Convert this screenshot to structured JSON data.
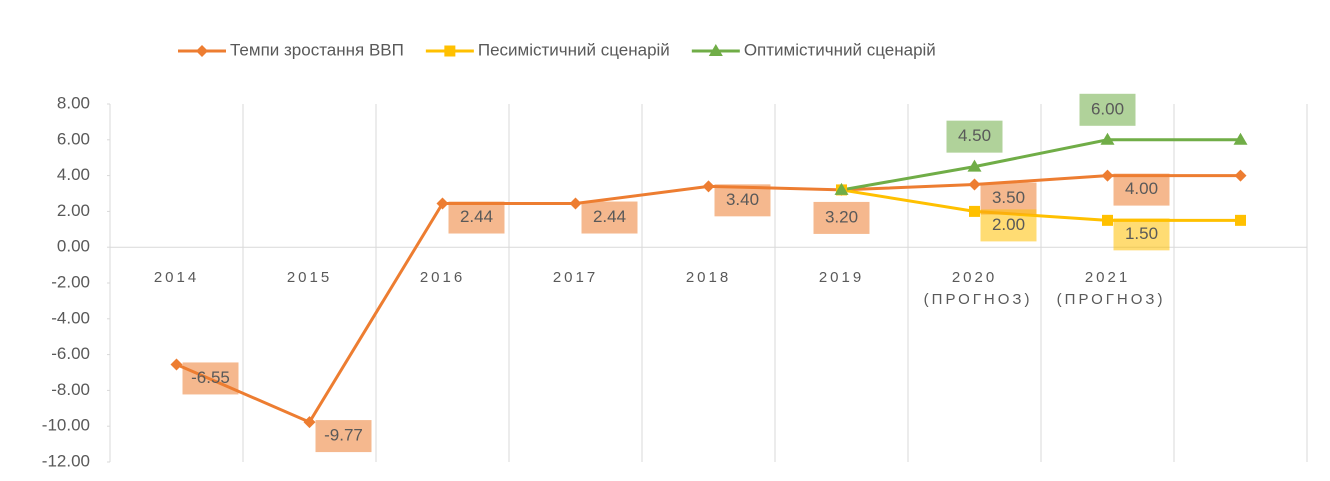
{
  "chart_data": {
    "type": "line",
    "categories": [
      "2014",
      "2015",
      "2016",
      "2017",
      "2018",
      "2019",
      "2020 (ПРОГНОЗ)",
      "2021 (ПРОГНОЗ)",
      null
    ],
    "series": [
      {
        "name": "Темпи зростання ВВП",
        "color": "#ed7d31",
        "marker": "diamond",
        "values": [
          -6.55,
          -9.77,
          2.44,
          2.44,
          3.4,
          3.2,
          3.5,
          4.0,
          4.0
        ],
        "value_labels": [
          "-6.55",
          "-9.77",
          "2.44",
          "2.44",
          "3.40",
          "3.20",
          "3.50",
          "4.00",
          null
        ]
      },
      {
        "name": "Песимістичний сценарій",
        "color": "#ffc000",
        "marker": "square",
        "values": [
          null,
          null,
          null,
          null,
          null,
          3.2,
          2.0,
          1.5,
          1.5
        ],
        "value_labels": [
          null,
          null,
          null,
          null,
          null,
          null,
          "2.00",
          "1.50",
          null
        ]
      },
      {
        "name": "Оптимістичний сценарій",
        "color": "#70ad47",
        "marker": "triangle",
        "values": [
          null,
          null,
          null,
          null,
          null,
          3.2,
          4.5,
          6.0,
          6.0
        ],
        "value_labels": [
          null,
          null,
          null,
          null,
          null,
          null,
          "4.50",
          "6.00",
          null
        ]
      }
    ],
    "ylim": [
      -12,
      8
    ],
    "yticks": [
      {
        "value": -12,
        "label": "-12.00"
      },
      {
        "value": -10,
        "label": "-10.00"
      },
      {
        "value": -8,
        "label": "-8.00"
      },
      {
        "value": -6,
        "label": "-6.00"
      },
      {
        "value": -4,
        "label": "-4.00"
      },
      {
        "value": -2,
        "label": "-2.00"
      },
      {
        "value": 0,
        "label": "0.00"
      },
      {
        "value": 2,
        "label": "2.00"
      },
      {
        "value": 4,
        "label": "4.00"
      },
      {
        "value": 6,
        "label": "6.00"
      },
      {
        "value": 8,
        "label": "8.00"
      }
    ],
    "legend": "top"
  }
}
